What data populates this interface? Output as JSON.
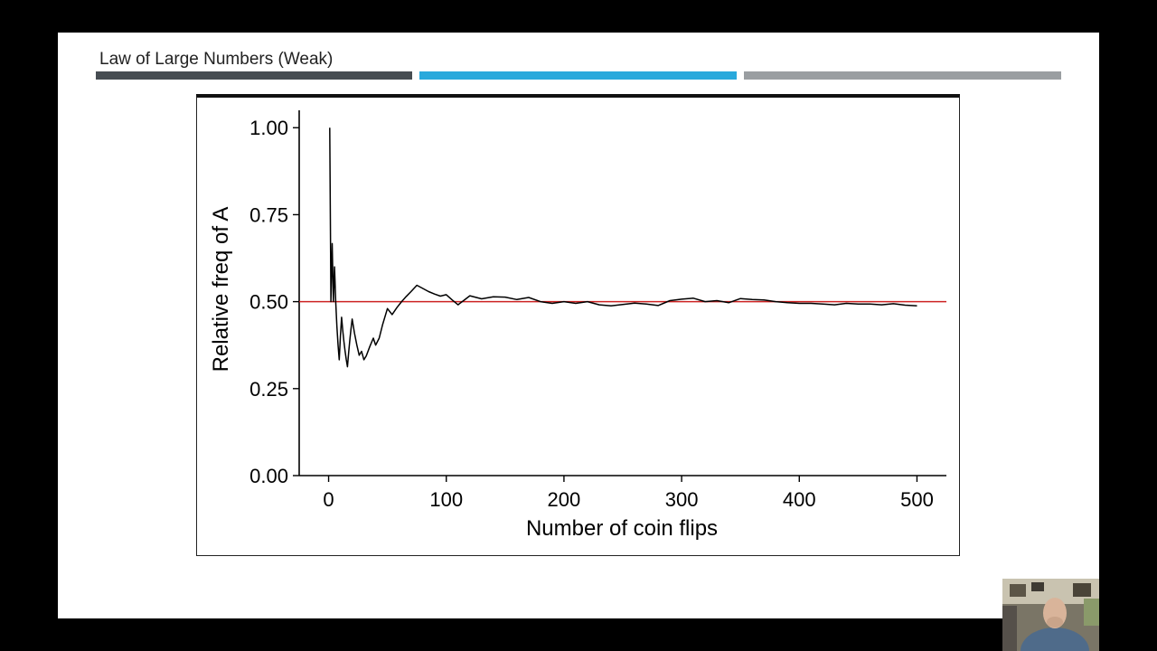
{
  "slide": {
    "title": "Law of Large Numbers (Weak)",
    "accent_colors": [
      "#474d52",
      "#29a9dc",
      "#9a9ea1"
    ]
  },
  "chart_data": {
    "type": "line",
    "title": "",
    "xlabel": "Number of coin flips",
    "ylabel": "Relative freq of A",
    "xlim": [
      -25,
      525
    ],
    "ylim": [
      0,
      1.05
    ],
    "x_ticks": [
      "0",
      "100",
      "200",
      "300",
      "400",
      "500"
    ],
    "y_ticks": [
      "0.00",
      "0.25",
      "0.50",
      "0.75",
      "1.00"
    ],
    "grid": false,
    "legend": "none",
    "reference_line": {
      "y": 0.5,
      "color": "#cc2222"
    },
    "series": [
      {
        "color": "#000000",
        "x": [
          1,
          2,
          3,
          4,
          5,
          6,
          7,
          8,
          9,
          10,
          11,
          12,
          13,
          14,
          15,
          16,
          17,
          18,
          19,
          20,
          22,
          24,
          26,
          28,
          30,
          32,
          35,
          38,
          40,
          43,
          46,
          50,
          54,
          58,
          62,
          66,
          70,
          75,
          80,
          85,
          90,
          95,
          100,
          105,
          110,
          115,
          120,
          130,
          140,
          150,
          160,
          170,
          180,
          190,
          200,
          210,
          220,
          230,
          240,
          250,
          260,
          270,
          280,
          290,
          300,
          310,
          320,
          330,
          340,
          350,
          360,
          370,
          380,
          390,
          400,
          410,
          420,
          430,
          440,
          450,
          460,
          470,
          480,
          490,
          500
        ],
        "values": [
          1.0,
          0.5,
          0.667,
          0.5,
          0.6,
          0.5,
          0.429,
          0.375,
          0.333,
          0.4,
          0.455,
          0.417,
          0.385,
          0.357,
          0.333,
          0.313,
          0.353,
          0.389,
          0.421,
          0.45,
          0.409,
          0.375,
          0.346,
          0.357,
          0.333,
          0.344,
          0.371,
          0.395,
          0.375,
          0.395,
          0.435,
          0.48,
          0.463,
          0.483,
          0.5,
          0.515,
          0.529,
          0.547,
          0.538,
          0.529,
          0.522,
          0.516,
          0.52,
          0.505,
          0.491,
          0.504,
          0.517,
          0.508,
          0.514,
          0.513,
          0.506,
          0.512,
          0.5,
          0.495,
          0.5,
          0.495,
          0.5,
          0.491,
          0.488,
          0.492,
          0.496,
          0.493,
          0.489,
          0.503,
          0.507,
          0.51,
          0.5,
          0.503,
          0.497,
          0.509,
          0.506,
          0.505,
          0.5,
          0.497,
          0.495,
          0.495,
          0.493,
          0.491,
          0.495,
          0.493,
          0.493,
          0.491,
          0.494,
          0.49,
          0.488
        ]
      }
    ]
  }
}
